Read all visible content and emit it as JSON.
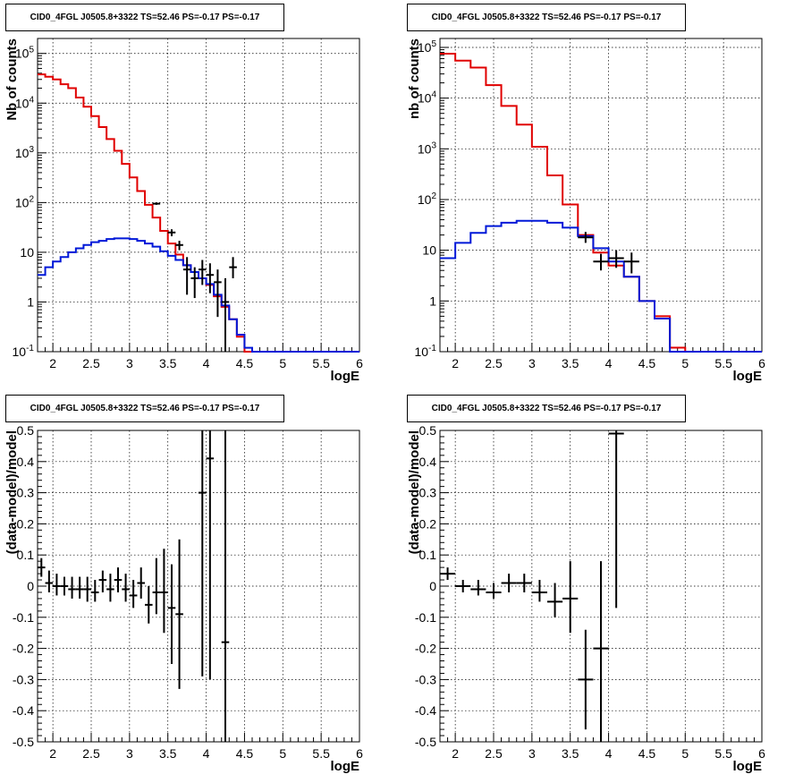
{
  "chart_data": [
    {
      "type": "line",
      "title": "CID0_4FGL J0505.8+3322 TS=52.46 PS=-0.17 PS=-0.17",
      "xlabel": "logE",
      "ylabel": "Nb of counts",
      "xlim": [
        1.8,
        6.0
      ],
      "ylim": [
        0.1,
        200000
      ],
      "log_y": true,
      "grid": true,
      "x_ticks": [
        "2",
        "2.5",
        "3",
        "3.5",
        "4",
        "4.5",
        "5",
        "5.5",
        "6"
      ],
      "y_ticks": [
        "10^-1",
        "1",
        "10",
        "10^2",
        "10^3",
        "10^4",
        "10^5"
      ],
      "bin_edges": [
        1.8,
        1.9,
        2.0,
        2.1,
        2.2,
        2.3,
        2.4,
        2.5,
        2.6,
        2.7,
        2.8,
        2.9,
        3.0,
        3.1,
        3.2,
        3.3,
        3.4,
        3.5,
        3.6,
        3.7,
        3.8,
        3.9,
        4.0,
        4.1,
        4.2,
        4.3,
        4.4,
        4.5,
        4.6,
        4.7,
        4.8,
        4.9,
        5.0,
        5.1,
        5.2,
        5.3,
        5.4,
        5.5,
        5.6,
        5.7,
        5.8,
        5.9,
        6.0
      ],
      "series": [
        {
          "color": "#e00000",
          "kind": "step",
          "values": [
            38000,
            34000,
            30000,
            24000,
            20000,
            13000,
            8500,
            5500,
            3300,
            1900,
            1100,
            600,
            320,
            170,
            90,
            50,
            27,
            15,
            9,
            5.5,
            4,
            3,
            2.2,
            1.3,
            0.8,
            0.45,
            0.2,
            0.1,
            0.1,
            0.1,
            0.1,
            0.1,
            0.1,
            0.1,
            0.1,
            0.1,
            0.1,
            0.1,
            0.1,
            0.1,
            0.1,
            0.1
          ]
        },
        {
          "color": "#0018d8",
          "kind": "step",
          "values": [
            3.5,
            5,
            6.5,
            8,
            10,
            12,
            14,
            16,
            17,
            18.5,
            19,
            19,
            18.5,
            17,
            15,
            13,
            10.5,
            8.5,
            7,
            5.5,
            4,
            3,
            2.3,
            1.4,
            0.85,
            0.45,
            0.22,
            0.12,
            0.1,
            0.1,
            0.1,
            0.1,
            0.1,
            0.1,
            0.1,
            0.1,
            0.1,
            0.1,
            0.1,
            0.1,
            0.1,
            0.1
          ]
        }
      ],
      "points": [
        {
          "x": 3.35,
          "y": 95,
          "xerr": 0.05,
          "ylo": 90,
          "yhi": 100
        },
        {
          "x": 3.55,
          "y": 25,
          "xerr": 0.05,
          "ylo": 21,
          "yhi": 29
        },
        {
          "x": 3.65,
          "y": 14,
          "xerr": 0.05,
          "ylo": 11,
          "yhi": 17
        },
        {
          "x": 3.75,
          "y": 4.5,
          "xerr": 0.05,
          "ylo": 1.4,
          "yhi": 8
        },
        {
          "x": 3.85,
          "y": 3,
          "xerr": 0.05,
          "ylo": 1.2,
          "yhi": 5
        },
        {
          "x": 3.95,
          "y": 4.5,
          "xerr": 0.05,
          "ylo": 2.2,
          "yhi": 7
        },
        {
          "x": 4.05,
          "y": 3.5,
          "xerr": 0.05,
          "ylo": 1.5,
          "yhi": 6
        },
        {
          "x": 4.15,
          "y": 2.5,
          "xerr": 0.05,
          "ylo": 0.5,
          "yhi": 4.5
        },
        {
          "x": 4.25,
          "y": 1,
          "xerr": 0.05,
          "ylo": 0.1,
          "yhi": 3
        },
        {
          "x": 4.35,
          "y": 5,
          "xerr": 0.05,
          "ylo": 3,
          "yhi": 8
        }
      ]
    },
    {
      "type": "line",
      "title": "CID0_4FGL J0505.8+3322 TS=52.46 PS=-0.17 PS=-0.17",
      "xlabel": "logE",
      "ylabel": "nb of counts",
      "xlim": [
        1.8,
        6.0
      ],
      "ylim": [
        0.1,
        150000
      ],
      "log_y": true,
      "grid": true,
      "x_ticks": [
        "2",
        "2.5",
        "3",
        "3.5",
        "4",
        "4.5",
        "5",
        "5.5",
        "6"
      ],
      "y_ticks": [
        "10^-1",
        "1",
        "10",
        "10^2",
        "10^3",
        "10^4",
        "10^5"
      ],
      "bin_edges": [
        1.8,
        2.0,
        2.2,
        2.4,
        2.6,
        2.8,
        3.0,
        3.2,
        3.4,
        3.6,
        3.8,
        4.0,
        4.2,
        4.4,
        4.6,
        4.8,
        5.0,
        5.2,
        5.4,
        5.6,
        5.8,
        6.0
      ],
      "series": [
        {
          "color": "#e00000",
          "kind": "step",
          "values": [
            75000,
            55000,
            40000,
            18000,
            7000,
            3000,
            1100,
            300,
            80,
            20,
            9,
            5,
            3,
            1,
            0.5,
            0.12,
            0.1,
            0.1,
            0.1,
            0.1,
            0.1
          ]
        },
        {
          "color": "#0018d8",
          "kind": "step",
          "values": [
            7,
            14,
            22,
            30,
            35,
            38,
            38,
            35,
            28,
            19,
            11,
            6,
            3,
            1,
            0.45,
            0.1,
            0.1,
            0.1,
            0.1,
            0.1,
            0.1
          ]
        }
      ],
      "points": [
        {
          "x": 3.7,
          "y": 18,
          "xerr": 0.1,
          "ylo": 14,
          "yhi": 23
        },
        {
          "x": 3.9,
          "y": 6,
          "xerr": 0.1,
          "ylo": 4,
          "yhi": 8.5
        },
        {
          "x": 4.1,
          "y": 7,
          "xerr": 0.1,
          "ylo": 4.5,
          "yhi": 10
        },
        {
          "x": 4.3,
          "y": 6,
          "xerr": 0.1,
          "ylo": 3.5,
          "yhi": 9
        }
      ]
    },
    {
      "type": "scatter",
      "title": "CID0_4FGL J0505.8+3322 TS=52.46 PS=-0.17 PS=-0.17",
      "xlabel": "logE",
      "ylabel": "(data-model)/model",
      "xlim": [
        1.8,
        6.0
      ],
      "ylim": [
        -0.5,
        0.5
      ],
      "grid": true,
      "x_ticks": [
        "2",
        "2.5",
        "3",
        "3.5",
        "4",
        "4.5",
        "5",
        "5.5",
        "6"
      ],
      "y_ticks": [
        "-0.5",
        "-0.4",
        "-0.3",
        "-0.2",
        "-0.1",
        "0",
        "0.1",
        "0.2",
        "0.3",
        "0.4",
        "0.5"
      ],
      "points": [
        {
          "x": 1.85,
          "y": 0.06,
          "xerr": 0.05,
          "ylo": 0.03,
          "yhi": 0.09
        },
        {
          "x": 1.95,
          "y": 0.01,
          "xerr": 0.05,
          "ylo": -0.02,
          "yhi": 0.05
        },
        {
          "x": 2.05,
          "y": 0.0,
          "xerr": 0.05,
          "ylo": -0.03,
          "yhi": 0.04
        },
        {
          "x": 2.15,
          "y": 0.0,
          "xerr": 0.05,
          "ylo": -0.03,
          "yhi": 0.03
        },
        {
          "x": 2.25,
          "y": -0.01,
          "xerr": 0.05,
          "ylo": -0.04,
          "yhi": 0.03
        },
        {
          "x": 2.35,
          "y": -0.01,
          "xerr": 0.05,
          "ylo": -0.04,
          "yhi": 0.03
        },
        {
          "x": 2.45,
          "y": -0.01,
          "xerr": 0.05,
          "ylo": -0.05,
          "yhi": 0.03
        },
        {
          "x": 2.55,
          "y": -0.02,
          "xerr": 0.05,
          "ylo": -0.05,
          "yhi": 0.02
        },
        {
          "x": 2.65,
          "y": 0.02,
          "xerr": 0.05,
          "ylo": -0.02,
          "yhi": 0.05
        },
        {
          "x": 2.75,
          "y": -0.01,
          "xerr": 0.05,
          "ylo": -0.05,
          "yhi": 0.04
        },
        {
          "x": 2.85,
          "y": 0.02,
          "xerr": 0.05,
          "ylo": -0.02,
          "yhi": 0.06
        },
        {
          "x": 2.95,
          "y": -0.01,
          "xerr": 0.05,
          "ylo": -0.05,
          "yhi": 0.04
        },
        {
          "x": 3.05,
          "y": -0.03,
          "xerr": 0.05,
          "ylo": -0.07,
          "yhi": 0.02
        },
        {
          "x": 3.15,
          "y": 0.01,
          "xerr": 0.05,
          "ylo": -0.04,
          "yhi": 0.06
        },
        {
          "x": 3.25,
          "y": -0.06,
          "xerr": 0.05,
          "ylo": -0.12,
          "yhi": 0.0
        },
        {
          "x": 3.35,
          "y": -0.02,
          "xerr": 0.05,
          "ylo": -0.09,
          "yhi": 0.09
        },
        {
          "x": 3.45,
          "y": -0.02,
          "xerr": 0.05,
          "ylo": -0.15,
          "yhi": 0.12
        },
        {
          "x": 3.55,
          "y": -0.07,
          "xerr": 0.05,
          "ylo": -0.25,
          "yhi": 0.07
        },
        {
          "x": 3.65,
          "y": -0.09,
          "xerr": 0.05,
          "ylo": -0.33,
          "yhi": 0.15
        },
        {
          "x": 3.95,
          "y": 0.3,
          "xerr": 0.05,
          "ylo": -0.29,
          "yhi": 0.5
        },
        {
          "x": 4.05,
          "y": 0.41,
          "xerr": 0.05,
          "ylo": -0.3,
          "yhi": 0.5
        },
        {
          "x": 4.25,
          "y": -0.18,
          "xerr": 0.05,
          "ylo": -0.5,
          "yhi": 0.5
        }
      ]
    },
    {
      "type": "scatter",
      "title": "CID0_4FGL J0505.8+3322 TS=52.46 PS=-0.17 PS=-0.17",
      "xlabel": "logE",
      "ylabel": "(data-model)/model",
      "xlim": [
        1.8,
        6.0
      ],
      "ylim": [
        -0.5,
        0.5
      ],
      "grid": true,
      "x_ticks": [
        "2",
        "2.5",
        "3",
        "3.5",
        "4",
        "4.5",
        "5",
        "5.5",
        "6"
      ],
      "y_ticks": [
        "-0.5",
        "-0.4",
        "-0.3",
        "-0.2",
        "-0.1",
        "0",
        "0.1",
        "0.2",
        "0.3",
        "0.4",
        "0.5"
      ],
      "points": [
        {
          "x": 1.9,
          "y": 0.04,
          "xerr": 0.1,
          "ylo": 0.02,
          "yhi": 0.06
        },
        {
          "x": 2.1,
          "y": 0.0,
          "xerr": 0.1,
          "ylo": -0.02,
          "yhi": 0.02
        },
        {
          "x": 2.3,
          "y": -0.01,
          "xerr": 0.1,
          "ylo": -0.03,
          "yhi": 0.02
        },
        {
          "x": 2.5,
          "y": -0.02,
          "xerr": 0.1,
          "ylo": -0.04,
          "yhi": 0.01
        },
        {
          "x": 2.7,
          "y": 0.01,
          "xerr": 0.1,
          "ylo": -0.02,
          "yhi": 0.04
        },
        {
          "x": 2.9,
          "y": 0.01,
          "xerr": 0.1,
          "ylo": -0.02,
          "yhi": 0.04
        },
        {
          "x": 3.1,
          "y": -0.02,
          "xerr": 0.1,
          "ylo": -0.05,
          "yhi": 0.02
        },
        {
          "x": 3.3,
          "y": -0.05,
          "xerr": 0.1,
          "ylo": -0.1,
          "yhi": 0.01
        },
        {
          "x": 3.5,
          "y": -0.04,
          "xerr": 0.1,
          "ylo": -0.15,
          "yhi": 0.08
        },
        {
          "x": 3.7,
          "y": -0.3,
          "xerr": 0.1,
          "ylo": -0.46,
          "yhi": -0.14
        },
        {
          "x": 3.9,
          "y": -0.2,
          "xerr": 0.1,
          "ylo": -0.5,
          "yhi": 0.08
        },
        {
          "x": 4.1,
          "y": 0.49,
          "xerr": 0.1,
          "ylo": -0.07,
          "yhi": 0.5
        }
      ]
    }
  ]
}
